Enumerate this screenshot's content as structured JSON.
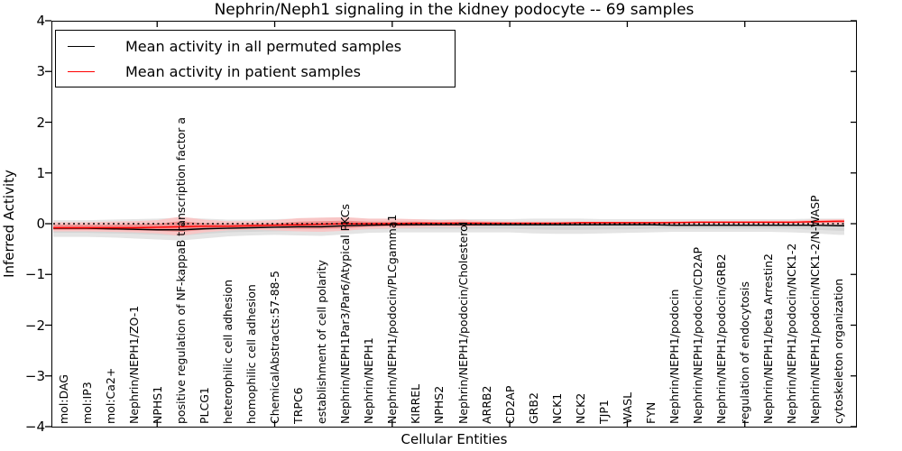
{
  "title": "Nephrin/Neph1 signaling in the kidney podocyte -- 69 samples",
  "sample_count": "69",
  "legend": {
    "entries": [
      {
        "label": "Mean activity in all permuted samples",
        "color": "#000000"
      },
      {
        "label": "Mean activity in patient samples",
        "color": "#ff0000"
      }
    ]
  },
  "axes": {
    "y": {
      "label": "Inferred Activity",
      "ticks": [
        {
          "value": 4,
          "label": "4"
        },
        {
          "value": 3,
          "label": "3"
        },
        {
          "value": 2,
          "label": "2"
        },
        {
          "value": 1,
          "label": "1"
        },
        {
          "value": 0,
          "label": "0"
        },
        {
          "value": -1,
          "label": "−1"
        },
        {
          "value": -2,
          "label": "−2"
        },
        {
          "value": -3,
          "label": "−3"
        },
        {
          "value": -4,
          "label": "−4"
        }
      ],
      "ylim": [
        -4,
        4
      ]
    },
    "x": {
      "label": "Cellular Entities",
      "major_ticks": [
        5,
        10,
        15,
        20,
        25,
        30
      ]
    }
  },
  "chart_data": {
    "type": "line",
    "title": "Nephrin/Neph1 signaling in the kidney podocyte -- 69 samples",
    "xlabel": "Cellular Entities",
    "ylabel": "Inferred Activity",
    "ylim": [
      -4,
      4
    ],
    "grid": false,
    "legend_position": "upper left",
    "categories": [
      "mol:DAG",
      "mol:IP3",
      "mol:Ca2+",
      "Nephrin/NEPH1/ZO-1",
      "NPHS1",
      "positive regulation of NF-kappaB transcription factor a",
      "PLCG1",
      "heterophilic cell adhesion",
      "homophilic cell adhesion",
      "ChemicalAbstracts:57-88-5",
      "TRPC6",
      "establishment of cell polarity",
      "Nephrin/NEPH1Par3/Par6/Atypical PKCs",
      "Nephrin/NEPH1",
      "Nephrin/NEPH1/podocin/PLCgamma1",
      "KIRREL",
      "NPHS2",
      "Nephrin/NEPH1/podocin/Cholesterol",
      "ARRB2",
      "CD2AP",
      "GRB2",
      "NCK1",
      "NCK2",
      "TJP1",
      "WASL",
      "FYN",
      "Nephrin/NEPH1/podocin",
      "Nephrin/NEPH1/podocin/CD2AP",
      "Nephrin/NEPH1/podocin/GRB2",
      "regulation of endocytosis",
      "Nephrin/NEPH1/beta Arrestin2",
      "Nephrin/NEPH1/podocin/NCK1-2",
      "Nephrin/NEPH1/podocin/NCK1-2/N-WASP",
      "cytoskeleton organization"
    ],
    "series": [
      {
        "name": "Mean activity in all permuted samples",
        "color": "#000000",
        "values": [
          -0.09,
          -0.09,
          -0.1,
          -0.11,
          -0.12,
          -0.12,
          -0.1,
          -0.09,
          -0.08,
          -0.07,
          -0.06,
          -0.06,
          -0.04,
          -0.03,
          -0.02,
          -0.02,
          -0.02,
          -0.02,
          -0.02,
          -0.02,
          -0.02,
          -0.02,
          -0.02,
          -0.02,
          -0.02,
          -0.02,
          -0.03,
          -0.03,
          -0.03,
          -0.03,
          -0.03,
          -0.03,
          -0.03,
          -0.04
        ]
      },
      {
        "name": "Mean activity in patient samples",
        "color": "#ff0000",
        "values": [
          -0.08,
          -0.08,
          -0.08,
          -0.08,
          -0.07,
          -0.06,
          -0.05,
          -0.05,
          -0.04,
          -0.03,
          -0.02,
          -0.01,
          0.0,
          0.0,
          0.0,
          0.01,
          0.01,
          0.01,
          0.01,
          0.01,
          0.01,
          0.01,
          0.02,
          0.02,
          0.02,
          0.02,
          0.02,
          0.03,
          0.03,
          0.03,
          0.03,
          0.03,
          0.04,
          0.05
        ]
      }
    ],
    "bands": [
      {
        "name": "permuted-range",
        "color": "#e4e4e4",
        "hi": [
          0.07,
          0.07,
          0.08,
          0.09,
          0.1,
          0.12,
          0.1,
          0.08,
          0.08,
          0.09,
          0.1,
          0.11,
          0.1,
          0.09,
          0.09,
          0.09,
          0.09,
          0.09,
          0.09,
          0.09,
          0.1,
          0.1,
          0.1,
          0.09,
          0.09,
          0.09,
          0.09,
          0.09,
          0.09,
          0.09,
          0.09,
          0.09,
          0.1,
          0.1
        ],
        "lo": [
          -0.26,
          -0.26,
          -0.27,
          -0.29,
          -0.31,
          -0.33,
          -0.29,
          -0.25,
          -0.23,
          -0.22,
          -0.23,
          -0.24,
          -0.21,
          -0.18,
          -0.17,
          -0.17,
          -0.17,
          -0.17,
          -0.17,
          -0.17,
          -0.19,
          -0.2,
          -0.2,
          -0.19,
          -0.18,
          -0.17,
          -0.16,
          -0.16,
          -0.16,
          -0.16,
          -0.16,
          -0.17,
          -0.19,
          -0.22
        ]
      },
      {
        "name": "permuted-inner-range",
        "color": "#d5d5d5",
        "hi": [
          -0.01,
          -0.01,
          -0.01,
          0.0,
          0.0,
          0.01,
          0.0,
          -0.01,
          -0.01,
          0.0,
          0.01,
          0.02,
          0.02,
          0.02,
          0.02,
          0.02,
          0.02,
          0.02,
          0.02,
          0.02,
          0.03,
          0.03,
          0.03,
          0.03,
          0.03,
          0.03,
          0.02,
          0.02,
          0.02,
          0.02,
          0.02,
          0.02,
          0.03,
          0.03
        ],
        "lo": [
          -0.18,
          -0.18,
          -0.19,
          -0.2,
          -0.22,
          -0.24,
          -0.2,
          -0.17,
          -0.16,
          -0.15,
          -0.15,
          -0.16,
          -0.13,
          -0.11,
          -0.1,
          -0.1,
          -0.1,
          -0.1,
          -0.1,
          -0.1,
          -0.11,
          -0.12,
          -0.12,
          -0.11,
          -0.11,
          -0.1,
          -0.1,
          -0.1,
          -0.1,
          -0.1,
          -0.1,
          -0.1,
          -0.12,
          -0.14
        ]
      },
      {
        "name": "patient-range",
        "color": "#f8c6c6",
        "hi": [
          0.03,
          0.03,
          0.04,
          0.05,
          0.07,
          0.14,
          0.08,
          0.05,
          0.05,
          0.07,
          0.11,
          0.12,
          0.13,
          0.1,
          0.1,
          0.09,
          0.07,
          0.08,
          0.05,
          0.04,
          0.04,
          0.04,
          0.04,
          0.04,
          0.04,
          0.04,
          0.05,
          0.05,
          0.05,
          0.05,
          0.06,
          0.06,
          0.08,
          0.09
        ],
        "lo": [
          -0.15,
          -0.15,
          -0.16,
          -0.17,
          -0.19,
          -0.24,
          -0.17,
          -0.13,
          -0.12,
          -0.13,
          -0.15,
          -0.16,
          -0.14,
          -0.1,
          -0.09,
          -0.08,
          -0.06,
          -0.07,
          -0.04,
          -0.03,
          -0.02,
          -0.02,
          -0.02,
          -0.02,
          -0.02,
          -0.02,
          -0.01,
          -0.01,
          -0.01,
          -0.01,
          -0.01,
          -0.01,
          -0.02,
          -0.02
        ]
      },
      {
        "name": "patient-inner-range",
        "color": "#f09090",
        "hi": [
          -0.02,
          -0.02,
          -0.02,
          -0.01,
          0.0,
          0.05,
          0.01,
          0.0,
          0.0,
          0.01,
          0.04,
          0.05,
          0.06,
          0.04,
          0.04,
          0.04,
          0.03,
          0.04,
          0.03,
          0.02,
          0.02,
          0.02,
          0.03,
          0.03,
          0.03,
          0.03,
          0.04,
          0.04,
          0.04,
          0.04,
          0.04,
          0.04,
          0.05,
          0.06
        ],
        "lo": [
          -0.12,
          -0.12,
          -0.12,
          -0.13,
          -0.14,
          -0.16,
          -0.12,
          -0.09,
          -0.08,
          -0.08,
          -0.1,
          -0.1,
          -0.09,
          -0.06,
          -0.05,
          -0.04,
          -0.03,
          -0.03,
          -0.02,
          -0.01,
          -0.01,
          -0.01,
          0.0,
          0.0,
          0.0,
          0.0,
          0.01,
          0.01,
          0.01,
          0.01,
          0.01,
          0.01,
          0.02,
          0.02
        ]
      }
    ],
    "reference_line": {
      "y": 0,
      "style": "dotted",
      "color": "#000000"
    }
  }
}
